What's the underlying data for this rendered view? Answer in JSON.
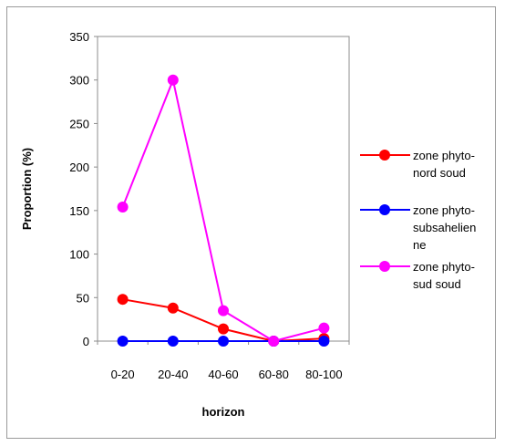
{
  "chart_data": {
    "type": "line",
    "categories": [
      "0-20",
      "20-40",
      "40-60",
      "60-80",
      "80-100"
    ],
    "xlabel": "horizon",
    "ylabel": "Proportion (%)",
    "ylim": [
      0,
      350
    ],
    "yticks": [
      0,
      50,
      100,
      150,
      200,
      250,
      300,
      350
    ],
    "grid": false,
    "legend_position": "right",
    "series": [
      {
        "name": "zone phyto-nord soud",
        "legend_lines": [
          "zone phyto-",
          "nord soud"
        ],
        "color": "#ff0000",
        "values": [
          48,
          38,
          14,
          0,
          3
        ]
      },
      {
        "name": "zone phyto-subsahelienne",
        "legend_lines": [
          "zone phyto-",
          "subsahelien",
          "ne"
        ],
        "color": "#0000ff",
        "values": [
          0,
          0,
          0,
          0,
          0
        ]
      },
      {
        "name": "zone phyto-sud soud",
        "legend_lines": [
          "zone phyto-",
          "sud soud"
        ],
        "color": "#ff00ff",
        "values": [
          154,
          300,
          35,
          0,
          15
        ]
      }
    ]
  }
}
